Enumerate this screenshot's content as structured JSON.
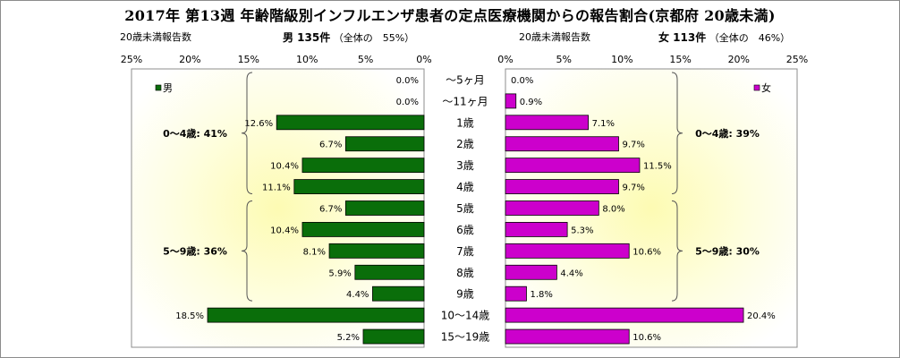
{
  "chart_data": {
    "type": "bar",
    "title": "2017年 第13週 年齢階級別インフルエンザ患者の定点医療機関からの報告割合(京都府 20歳未満)",
    "categories": [
      "〜5ヶ月",
      "〜11ヶ月",
      "1歳",
      "2歳",
      "3歳",
      "4歳",
      "5歳",
      "6歳",
      "7歳",
      "8歳",
      "9歳",
      "10〜14歳",
      "15〜19歳"
    ],
    "series": [
      {
        "name": "男",
        "color": "#0a6e0a",
        "values": [
          0.0,
          0.0,
          12.6,
          6.7,
          10.4,
          11.1,
          6.7,
          10.4,
          8.1,
          5.9,
          4.4,
          18.5,
          5.2
        ],
        "labels": [
          "0.0%",
          "0.0%",
          "12.6%",
          "6.7%",
          "10.4%",
          "11.1%",
          "6.7%",
          "10.4%",
          "8.1%",
          "5.9%",
          "4.4%",
          "18.5%",
          "5.2%"
        ]
      },
      {
        "name": "女",
        "color": "#cc00cc",
        "values": [
          0.0,
          0.9,
          7.1,
          9.7,
          11.5,
          9.7,
          8.0,
          5.3,
          10.6,
          4.4,
          1.8,
          20.4,
          10.6
        ],
        "labels": [
          "0.0%",
          "0.9%",
          "7.1%",
          "9.7%",
          "11.5%",
          "9.7%",
          "8.0%",
          "5.3%",
          "10.6%",
          "4.4%",
          "1.8%",
          "20.4%",
          "10.6%"
        ]
      }
    ],
    "xlim": [
      0,
      25
    ],
    "left_ticks": [
      "25%",
      "20%",
      "15%",
      "10%",
      "5%",
      "0%"
    ],
    "right_ticks": [
      "0%",
      "5%",
      "10%",
      "15%",
      "20%",
      "25%"
    ],
    "left_header": {
      "caption": "20歳未満報告数",
      "label": "男 135件",
      "share": "（全体の　55%）"
    },
    "right_header": {
      "caption": "20歳未満報告数",
      "label": "女 113件",
      "share": "（全体の　46%）"
    },
    "left_groups": [
      {
        "label": "0〜4歳: 41%",
        "from": 0,
        "to": 5
      },
      {
        "label": "5〜9歳: 36%",
        "from": 6,
        "to": 10
      }
    ],
    "right_groups": [
      {
        "label": "0〜4歳: 39%",
        "from": 0,
        "to": 5
      },
      {
        "label": "5〜9歳: 30%",
        "from": 6,
        "to": 10
      }
    ],
    "legend": {
      "left": "男",
      "right": "女",
      "placement": "top-left / top-right of each panel"
    }
  }
}
